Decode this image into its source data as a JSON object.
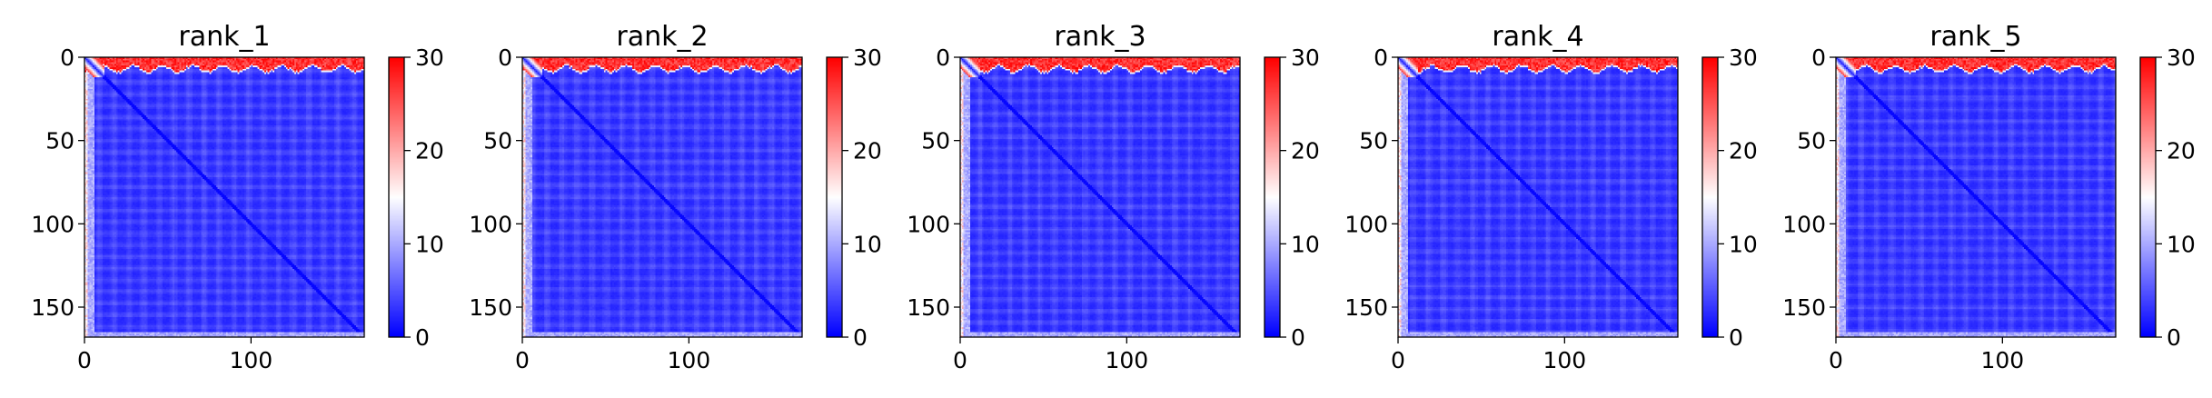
{
  "figure": {
    "background": "#ffffff"
  },
  "chart_data": [
    {
      "type": "heatmap",
      "title": "rank_1",
      "matrix_size": 168,
      "xlim": [
        0,
        168
      ],
      "ylim": [
        168,
        0
      ],
      "xticks": [
        0,
        100
      ],
      "yticks": [
        0,
        50,
        100,
        150
      ],
      "colorbar": {
        "vmin": 0,
        "vmax": 30,
        "ticks": [
          0,
          10,
          20,
          30
        ],
        "colormap": "bwr",
        "colors": [
          "#0000ff",
          "#ffffff",
          "#ff0000"
        ]
      },
      "pattern": {
        "diagonal": 1,
        "top_band_value": 30,
        "left_band_value": 20,
        "body_value": 2
      }
    },
    {
      "type": "heatmap",
      "title": "rank_2",
      "matrix_size": 168,
      "xlim": [
        0,
        168
      ],
      "ylim": [
        168,
        0
      ],
      "xticks": [
        0,
        100
      ],
      "yticks": [
        0,
        50,
        100,
        150
      ],
      "colorbar": {
        "vmin": 0,
        "vmax": 30,
        "ticks": [
          0,
          10,
          20,
          30
        ],
        "colormap": "bwr",
        "colors": [
          "#0000ff",
          "#ffffff",
          "#ff0000"
        ]
      },
      "pattern": {
        "diagonal": 1,
        "top_band_value": 30,
        "left_band_value": 20,
        "body_value": 2
      }
    },
    {
      "type": "heatmap",
      "title": "rank_3",
      "matrix_size": 168,
      "xlim": [
        0,
        168
      ],
      "ylim": [
        168,
        0
      ],
      "xticks": [
        0,
        100
      ],
      "yticks": [
        0,
        50,
        100,
        150
      ],
      "colorbar": {
        "vmin": 0,
        "vmax": 30,
        "ticks": [
          0,
          10,
          20,
          30
        ],
        "colormap": "bwr",
        "colors": [
          "#0000ff",
          "#ffffff",
          "#ff0000"
        ]
      },
      "pattern": {
        "diagonal": 1,
        "top_band_value": 30,
        "left_band_value": 20,
        "body_value": 2
      }
    },
    {
      "type": "heatmap",
      "title": "rank_4",
      "matrix_size": 168,
      "xlim": [
        0,
        168
      ],
      "ylim": [
        168,
        0
      ],
      "xticks": [
        0,
        100
      ],
      "yticks": [
        0,
        50,
        100,
        150
      ],
      "colorbar": {
        "vmin": 0,
        "vmax": 30,
        "ticks": [
          0,
          10,
          20,
          30
        ],
        "colormap": "bwr",
        "colors": [
          "#0000ff",
          "#ffffff",
          "#ff0000"
        ]
      },
      "pattern": {
        "diagonal": 1,
        "top_band_value": 30,
        "left_band_value": 20,
        "body_value": 2
      }
    },
    {
      "type": "heatmap",
      "title": "rank_5",
      "matrix_size": 168,
      "xlim": [
        0,
        168
      ],
      "ylim": [
        168,
        0
      ],
      "xticks": [
        0,
        100
      ],
      "yticks": [
        0,
        50,
        100,
        150
      ],
      "colorbar": {
        "vmin": 0,
        "vmax": 30,
        "ticks": [
          0,
          10,
          20,
          30
        ],
        "colormap": "bwr",
        "colors": [
          "#0000ff",
          "#ffffff",
          "#ff0000"
        ]
      },
      "pattern": {
        "diagonal": 1,
        "top_band_value": 30,
        "left_band_value": 20,
        "body_value": 2
      }
    }
  ]
}
